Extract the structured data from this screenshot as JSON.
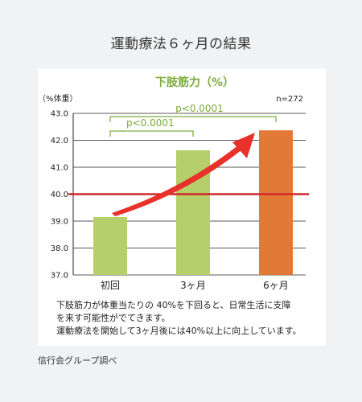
{
  "page": {
    "heading": "運動療法６ヶ月の結果",
    "note_lines": [
      "下肢筋力が体重当たりの 40%を下回ると、日常生活に支障",
      "を来す可能性がでてきます。",
      "運動療法を開始して3ヶ月後には40%以上に向上しています。"
    ],
    "source": "信行会グループ調べ"
  },
  "chart_data": {
    "type": "bar",
    "title": "下肢筋力（%）",
    "ylabel": "（%体重）",
    "sample_size": "n=272",
    "categories": [
      "初回",
      "3ヶ月",
      "6ヶ月"
    ],
    "values": [
      39.15,
      41.63,
      42.37
    ],
    "ylim": [
      37.0,
      43.0
    ],
    "yticks": [
      "37.0",
      "38.0",
      "39.0",
      "40.0",
      "41.0",
      "42.0",
      "43.0"
    ],
    "bar_colors": [
      "#b5cf6b",
      "#b5cf6b",
      "#e07a36"
    ],
    "reference_line": {
      "value": 40.0,
      "color": "#d02828"
    },
    "grid": true,
    "significance": [
      {
        "from": 0,
        "to": 1,
        "label": "p<0.0001",
        "color": "#7bab3a"
      },
      {
        "from": 0,
        "to": 2,
        "label": "p<0.0001",
        "color": "#7bab3a"
      }
    ],
    "trend_arrow": {
      "color": "#e8312a"
    }
  }
}
